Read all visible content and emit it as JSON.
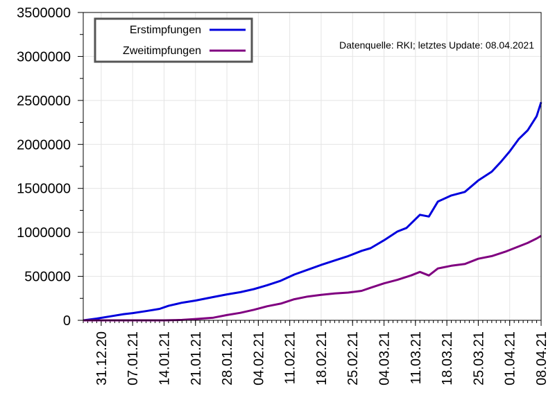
{
  "chart_data": {
    "type": "line",
    "title": "",
    "xlabel": "",
    "ylabel": "",
    "note": "Datenquelle: RKI; letztes Update: 08.04.2021",
    "x_start": "27.12.20",
    "x_end": "08.04.21",
    "xtick_labels": [
      "31.12.20",
      "07.01.21",
      "14.01.21",
      "21.01.21",
      "28.01.21",
      "04.02.21",
      "11.02.21",
      "18.02.21",
      "25.02.21",
      "04.03.21",
      "11.03.21",
      "18.03.21",
      "25.03.21",
      "01.04.21",
      "08.04.21"
    ],
    "ylim": [
      0,
      3500000
    ],
    "yticks": [
      0,
      500000,
      1000000,
      1500000,
      2000000,
      2500000,
      3000000,
      3500000
    ],
    "ytick_labels": [
      "0",
      "500000",
      "1000000",
      "1500000",
      "2000000",
      "2500000",
      "3000000",
      "3500000"
    ],
    "grid": true,
    "legend_position": "top-left",
    "series": [
      {
        "name": "Erstimpfungen",
        "color": "#0000dd",
        "points": [
          [
            "27.12.20",
            0
          ],
          [
            "30.12.20",
            20000
          ],
          [
            "02.01.21",
            45000
          ],
          [
            "05.01.21",
            70000
          ],
          [
            "07.01.21",
            82000
          ],
          [
            "10.01.21",
            105000
          ],
          [
            "13.01.21",
            130000
          ],
          [
            "15.01.21",
            165000
          ],
          [
            "18.01.21",
            200000
          ],
          [
            "21.01.21",
            225000
          ],
          [
            "25.01.21",
            265000
          ],
          [
            "28.01.21",
            295000
          ],
          [
            "31.01.21",
            320000
          ],
          [
            "03.02.21",
            355000
          ],
          [
            "06.02.21",
            400000
          ],
          [
            "09.02.21",
            450000
          ],
          [
            "12.02.21",
            520000
          ],
          [
            "15.02.21",
            575000
          ],
          [
            "18.02.21",
            630000
          ],
          [
            "21.02.21",
            680000
          ],
          [
            "24.02.21",
            730000
          ],
          [
            "27.02.21",
            790000
          ],
          [
            "01.03.21",
            820000
          ],
          [
            "04.03.21",
            910000
          ],
          [
            "07.03.21",
            1010000
          ],
          [
            "09.03.21",
            1050000
          ],
          [
            "12.03.21",
            1200000
          ],
          [
            "14.03.21",
            1180000
          ],
          [
            "16.03.21",
            1350000
          ],
          [
            "19.03.21",
            1420000
          ],
          [
            "22.03.21",
            1460000
          ],
          [
            "25.03.21",
            1590000
          ],
          [
            "28.03.21",
            1690000
          ],
          [
            "30.03.21",
            1800000
          ],
          [
            "01.04.21",
            1920000
          ],
          [
            "03.04.21",
            2060000
          ],
          [
            "05.04.21",
            2160000
          ],
          [
            "07.04.21",
            2320000
          ],
          [
            "08.04.21",
            2480000
          ]
        ]
      },
      {
        "name": "Zweitimpfungen",
        "color": "#800080",
        "points": [
          [
            "27.12.20",
            0
          ],
          [
            "14.01.21",
            0
          ],
          [
            "18.01.21",
            5000
          ],
          [
            "21.01.21",
            15000
          ],
          [
            "25.01.21",
            30000
          ],
          [
            "28.01.21",
            60000
          ],
          [
            "31.01.21",
            85000
          ],
          [
            "03.02.21",
            120000
          ],
          [
            "06.02.21",
            160000
          ],
          [
            "09.02.21",
            190000
          ],
          [
            "12.02.21",
            240000
          ],
          [
            "15.02.21",
            270000
          ],
          [
            "18.02.21",
            290000
          ],
          [
            "21.02.21",
            305000
          ],
          [
            "24.02.21",
            315000
          ],
          [
            "27.02.21",
            335000
          ],
          [
            "01.03.21",
            370000
          ],
          [
            "04.03.21",
            420000
          ],
          [
            "07.03.21",
            460000
          ],
          [
            "10.03.21",
            510000
          ],
          [
            "12.03.21",
            550000
          ],
          [
            "14.03.21",
            510000
          ],
          [
            "16.03.21",
            590000
          ],
          [
            "19.03.21",
            620000
          ],
          [
            "22.03.21",
            640000
          ],
          [
            "25.03.21",
            700000
          ],
          [
            "28.03.21",
            730000
          ],
          [
            "31.03.21",
            780000
          ],
          [
            "02.04.21",
            820000
          ],
          [
            "05.04.21",
            880000
          ],
          [
            "07.04.21",
            930000
          ],
          [
            "08.04.21",
            960000
          ]
        ]
      }
    ]
  }
}
